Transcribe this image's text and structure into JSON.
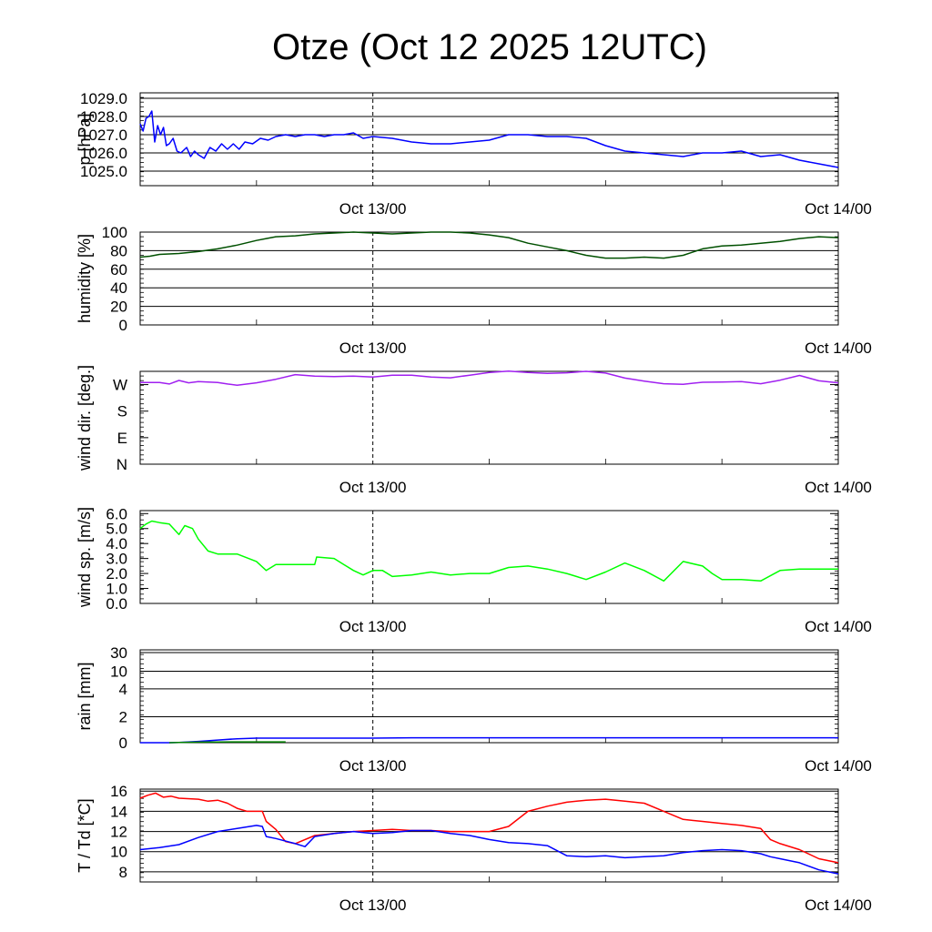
{
  "page": {
    "title": "Otze (Oct 12 2025 12UTC)"
  },
  "chart_data": [
    {
      "type": "line",
      "ylabel": "p [hPa]",
      "ylim": [
        1024.2,
        1029.3
      ],
      "yticks": [
        "1025.0",
        "1026.0",
        "1027.0",
        "1028.0",
        "1029.0"
      ],
      "yticks_values": [
        1025,
        1026,
        1027,
        1028,
        1029
      ],
      "grid": true,
      "xlim": [
        0,
        36
      ],
      "xticks": [
        "Oct 13/00",
        "Oct 14/00"
      ],
      "xticks_hours": [
        12,
        36
      ],
      "series": [
        {
          "color": "#0000ff",
          "x": [
            0,
            0.15,
            0.3,
            0.45,
            0.6,
            0.75,
            0.9,
            1.05,
            1.2,
            1.35,
            1.5,
            1.7,
            1.9,
            2.1,
            2.4,
            2.6,
            2.8,
            3.0,
            3.3,
            3.6,
            3.9,
            4.2,
            4.5,
            4.8,
            5.1,
            5.4,
            5.8,
            6.2,
            6.6,
            7.0,
            7.5,
            8.0,
            8.5,
            9.0,
            9.5,
            10.0,
            10.5,
            11.0,
            11.5,
            12.0,
            13,
            14,
            15,
            16,
            17,
            18,
            19,
            20,
            21,
            22,
            23,
            24,
            25,
            26,
            27,
            28,
            29,
            30,
            31,
            32,
            33,
            34,
            35,
            36
          ],
          "y": [
            1027.6,
            1027.2,
            1027.9,
            1028.0,
            1028.3,
            1026.6,
            1027.5,
            1027.0,
            1027.4,
            1026.4,
            1026.5,
            1026.8,
            1026.1,
            1026.0,
            1026.3,
            1025.8,
            1026.1,
            1025.9,
            1025.7,
            1026.3,
            1026.1,
            1026.5,
            1026.2,
            1026.5,
            1026.2,
            1026.6,
            1026.5,
            1026.8,
            1026.7,
            1026.9,
            1027.0,
            1026.9,
            1027.0,
            1027.0,
            1026.9,
            1027.0,
            1027.0,
            1027.1,
            1026.8,
            1026.9,
            1026.8,
            1026.6,
            1026.5,
            1026.5,
            1026.6,
            1026.7,
            1027.0,
            1027.0,
            1026.9,
            1026.9,
            1026.8,
            1026.4,
            1026.1,
            1026.0,
            1025.9,
            1025.8,
            1026.0,
            1026.0,
            1026.1,
            1025.8,
            1025.9,
            1025.6,
            1025.4,
            1025.2
          ]
        }
      ]
    },
    {
      "type": "line",
      "ylabel": "humidity [%]",
      "ylim": [
        0,
        100
      ],
      "yticks": [
        "0",
        "20",
        "40",
        "60",
        "80",
        "100"
      ],
      "yticks_values": [
        0,
        20,
        40,
        60,
        80,
        100
      ],
      "grid": true,
      "xlim": [
        0,
        36
      ],
      "xticks": [
        "Oct 13/00",
        "Oct 14/00"
      ],
      "xticks_hours": [
        12,
        36
      ],
      "series": [
        {
          "color": "#005000",
          "x": [
            0,
            0.5,
            1,
            2,
            3,
            4,
            5,
            6,
            6.5,
            7,
            8,
            9,
            10,
            11,
            12,
            13,
            14,
            15,
            16,
            17,
            18,
            19,
            20,
            21,
            22,
            23,
            24,
            25,
            26,
            27,
            28,
            29,
            30,
            31,
            32,
            33,
            34,
            35,
            36
          ],
          "y": [
            73,
            74,
            76,
            77,
            79,
            82,
            86,
            91,
            93,
            95,
            96,
            98,
            99,
            100,
            99,
            98,
            99,
            100,
            100,
            99,
            97,
            94,
            88,
            84,
            80,
            75,
            72,
            72,
            73,
            72,
            75,
            82,
            85,
            86,
            88,
            90,
            93,
            95,
            94
          ]
        }
      ]
    },
    {
      "type": "line",
      "ylabel": "wind dir. [deg.]",
      "ylim": [
        0,
        315
      ],
      "yticks": [
        "N",
        "E",
        "S",
        "W"
      ],
      "yticks_values": [
        0,
        90,
        180,
        270
      ],
      "grid": false,
      "xlim": [
        0,
        36
      ],
      "xticks": [
        "Oct 13/00",
        "Oct 14/00"
      ],
      "xticks_hours": [
        12,
        36
      ],
      "series": [
        {
          "color": "#a020f0",
          "x": [
            0,
            1,
            1.5,
            2,
            2.5,
            3,
            4,
            4.5,
            5,
            6,
            7,
            8,
            9,
            10,
            11,
            12,
            13,
            14,
            15,
            16,
            17,
            18,
            19,
            20,
            21,
            22,
            23,
            24,
            25,
            26,
            27,
            28,
            29,
            30,
            31,
            32,
            33,
            34,
            35,
            36
          ],
          "y": [
            277,
            277,
            272,
            284,
            276,
            280,
            277,
            272,
            268,
            276,
            288,
            304,
            299,
            297,
            299,
            296,
            302,
            302,
            296,
            293,
            302,
            311,
            316,
            311,
            308,
            310,
            315,
            309,
            292,
            282,
            273,
            271,
            278,
            279,
            280,
            273,
            285,
            301,
            283,
            276
          ]
        }
      ]
    },
    {
      "type": "line",
      "ylabel": "wind sp. [m/s]",
      "ylim": [
        0,
        6.2
      ],
      "yticks": [
        "0.0",
        "1.0",
        "2.0",
        "3.0",
        "4.0",
        "5.0",
        "6.0"
      ],
      "yticks_values": [
        0,
        1,
        2,
        3,
        4,
        5,
        6
      ],
      "grid": false,
      "xlim": [
        0,
        36
      ],
      "xticks": [
        "Oct 13/00",
        "Oct 14/00"
      ],
      "xticks_hours": [
        12,
        36
      ],
      "series": [
        {
          "color": "#00ff00",
          "x": [
            0,
            0.3,
            0.6,
            1,
            1.5,
            2,
            2.3,
            2.7,
            3,
            3.5,
            4,
            5,
            6,
            6.5,
            7,
            7.5,
            8,
            9,
            9.1,
            10,
            10.5,
            11,
            11.5,
            12,
            12.5,
            13,
            14,
            15,
            16,
            17,
            18,
            19,
            20,
            21,
            22,
            23,
            24,
            25,
            26,
            27,
            28,
            29,
            29.5,
            30,
            31,
            32,
            33,
            34,
            35,
            36
          ],
          "y": [
            5.0,
            5.3,
            5.5,
            5.4,
            5.3,
            4.6,
            5.2,
            5.0,
            4.3,
            3.5,
            3.3,
            3.3,
            2.8,
            2.2,
            2.6,
            2.6,
            2.6,
            2.6,
            3.1,
            3.0,
            2.6,
            2.2,
            1.9,
            2.2,
            2.2,
            1.8,
            1.9,
            2.1,
            1.9,
            2.0,
            2.0,
            2.4,
            2.5,
            2.3,
            2.0,
            1.6,
            2.1,
            2.7,
            2.2,
            1.5,
            2.8,
            2.5,
            2.0,
            1.6,
            1.6,
            1.5,
            2.2,
            2.3,
            2.3,
            2.3
          ]
        }
      ]
    },
    {
      "type": "line",
      "ylabel": "rain [mm]",
      "ylim": [
        0,
        30
      ],
      "yticks": [
        "0",
        "2",
        "4",
        "10",
        "30"
      ],
      "yticks_values": [
        0,
        2,
        4,
        10,
        30
      ],
      "scale": "nonlinear",
      "grid": true,
      "xlim": [
        0,
        36
      ],
      "xticks": [
        "Oct 13/00",
        "Oct 14/00"
      ],
      "xticks_hours": [
        12,
        36
      ],
      "series": [
        {
          "color": "#0000ff",
          "x": [
            0,
            1.5,
            2,
            3,
            4,
            5,
            6,
            7,
            8,
            10,
            12,
            14,
            18,
            22,
            26,
            30,
            36
          ],
          "y": [
            0,
            0,
            0.02,
            0.1,
            0.2,
            0.3,
            0.35,
            0.35,
            0.35,
            0.35,
            0.35,
            0.38,
            0.38,
            0.38,
            0.38,
            0.38,
            0.38
          ]
        },
        {
          "color": "#008000",
          "x": [
            1.5,
            2,
            3,
            4,
            5,
            6,
            7,
            7.5
          ],
          "y": [
            0,
            0.02,
            0.04,
            0.05,
            0.06,
            0.06,
            0.06,
            0.06
          ]
        }
      ]
    },
    {
      "type": "line",
      "ylabel": "T / Td [*C]",
      "ylim": [
        7,
        16.2
      ],
      "yticks": [
        "8",
        "10",
        "12",
        "14",
        "16"
      ],
      "yticks_values": [
        8,
        10,
        12,
        14,
        16
      ],
      "grid": true,
      "xlim": [
        0,
        36
      ],
      "xticks": [
        "Oct 13/00",
        "Oct 14/00"
      ],
      "xticks_hours": [
        12,
        36
      ],
      "series": [
        {
          "color": "#ff0000",
          "x": [
            0,
            0.4,
            0.8,
            1.2,
            1.6,
            2,
            3,
            3.5,
            4,
            4.5,
            5,
            5.5,
            6,
            6.3,
            6.5,
            7,
            7.5,
            8,
            9,
            10,
            11,
            12,
            13,
            14,
            15,
            16,
            17,
            18,
            19,
            20,
            21,
            22,
            23,
            24,
            25,
            26,
            27,
            28,
            29,
            30,
            31,
            32,
            32.5,
            33,
            34,
            35,
            36
          ],
          "y": [
            15.3,
            15.6,
            15.8,
            15.4,
            15.5,
            15.3,
            15.2,
            15.0,
            15.1,
            14.8,
            14.3,
            14.0,
            14.0,
            14.0,
            13.0,
            12.2,
            11.0,
            10.8,
            11.6,
            11.8,
            12.0,
            12.1,
            12.2,
            12.1,
            12.1,
            12.0,
            12.0,
            12.0,
            12.5,
            14.0,
            14.5,
            14.9,
            15.1,
            15.2,
            15.0,
            14.8,
            14.0,
            13.2,
            13.0,
            12.8,
            12.6,
            12.3,
            11.2,
            10.8,
            10.2,
            9.3,
            8.9
          ]
        },
        {
          "color": "#0000ff",
          "x": [
            0,
            1,
            2,
            3,
            4,
            5,
            6,
            6.3,
            6.5,
            7,
            8,
            8.5,
            9,
            10,
            11,
            12,
            13,
            14,
            15,
            16,
            17,
            18,
            19,
            20,
            21,
            22,
            23,
            24,
            25,
            26,
            27,
            28,
            29,
            30,
            31,
            32,
            32.5,
            33,
            34,
            35,
            36
          ],
          "y": [
            10.2,
            10.4,
            10.7,
            11.4,
            12.0,
            12.3,
            12.6,
            12.5,
            11.5,
            11.3,
            10.8,
            10.5,
            11.5,
            11.8,
            12.0,
            11.8,
            11.9,
            12.1,
            12.1,
            11.8,
            11.6,
            11.2,
            10.9,
            10.8,
            10.6,
            9.6,
            9.5,
            9.6,
            9.4,
            9.5,
            9.6,
            9.9,
            10.1,
            10.2,
            10.1,
            9.8,
            9.5,
            9.3,
            8.9,
            8.2,
            7.8
          ]
        }
      ]
    }
  ]
}
